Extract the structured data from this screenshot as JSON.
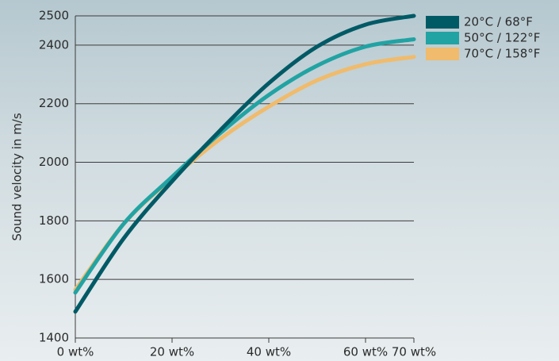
{
  "chart_data": {
    "type": "line",
    "y_label": "Sound velocity in m/s",
    "x": [
      0,
      10,
      20,
      30,
      40,
      50,
      60,
      70
    ],
    "series": [
      {
        "name": "20°C / 68°F",
        "color": "#005a66",
        "values": [
          1490,
          1740,
          1935,
          2110,
          2270,
          2395,
          2470,
          2500
        ]
      },
      {
        "name": "50°C / 122°F",
        "color": "#22a3a3",
        "values": [
          1555,
          1790,
          1950,
          2100,
          2230,
          2330,
          2395,
          2420
        ]
      },
      {
        "name": "70°C / 158°F",
        "color": "#f0bb6c",
        "values": [
          1565,
          1790,
          1945,
          2080,
          2190,
          2280,
          2335,
          2360
        ]
      }
    ],
    "xlim": [
      0,
      70
    ],
    "xticks": [
      {
        "value": 0,
        "label": "0 wt%"
      },
      {
        "value": 20,
        "label": "20 wt%"
      },
      {
        "value": 40,
        "label": "40 wt%"
      },
      {
        "value": 60,
        "label": "60 wt%"
      },
      {
        "value": 70,
        "label": "70 wt%"
      }
    ],
    "ylim": [
      1400,
      2500
    ],
    "yticks": [
      1400,
      1600,
      1800,
      2000,
      2200,
      2400,
      2500
    ],
    "grid": true,
    "legend": "right"
  }
}
